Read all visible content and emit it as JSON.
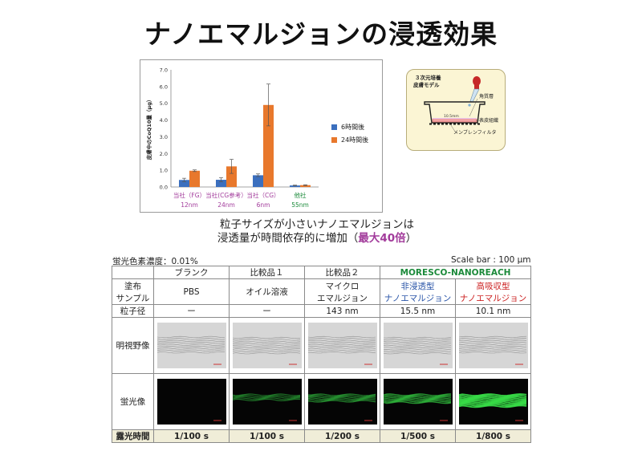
{
  "title": "ナノエマルジョンの浸透効果",
  "chart_data": {
    "type": "bar",
    "ylabel": "皮膚中のCoQ10量（μg）",
    "ylim": [
      0,
      7
    ],
    "yticks": [
      "0.0",
      "1.0",
      "2.0",
      "3.0",
      "4.0",
      "5.0",
      "6.0",
      "7.0"
    ],
    "categories": [
      {
        "line1": "当社（FG）",
        "line2": "12nm",
        "color": "#a23b9b"
      },
      {
        "line1": "当社(CG参考）",
        "line2": "24nm",
        "color": "#a23b9b"
      },
      {
        "line1": "当社（CG）",
        "line2": "6nm",
        "color": "#a23b9b"
      },
      {
        "line1": "他社",
        "line2": "55nm",
        "color": "#1b8a3a"
      }
    ],
    "series": [
      {
        "name": "6時間後",
        "color": "#3b6fbe",
        "values": [
          0.42,
          0.43,
          0.7,
          0.09
        ],
        "errors": [
          0.1,
          0.12,
          0.08,
          0.02
        ]
      },
      {
        "name": "24時間後",
        "color": "#e8782c",
        "values": [
          0.97,
          1.23,
          4.9,
          0.11
        ],
        "errors": [
          0.05,
          0.42,
          1.25,
          0.02
        ]
      }
    ],
    "legend": "right",
    "grid": false
  },
  "diagram": {
    "title_line1": "３次元培養",
    "title_line2": "皮膚モデル",
    "label_stratum": "角質層",
    "label_epidermis": "表皮組織",
    "label_size": "10.5mm",
    "label_membrane": "メンブレンフィルタ"
  },
  "caption": {
    "line1": "粒子サイズが小さいナノエマルジョンは",
    "line2_pre": "浸透量が時間依存的に増加（",
    "line2_hl": "最大40倍",
    "line2_post": "）"
  },
  "notes": {
    "concentration": "蛍光色素濃度：0.01%",
    "scale": "Scale bar : 100 μm"
  },
  "table": {
    "headers": [
      "ブランク",
      "比較品１",
      "比較品２"
    ],
    "brand": "MORESCO-NANOREACH",
    "row_coating": {
      "label_line1": "塗布",
      "label_line2": "サンプル",
      "cells": [
        {
          "line1": "PBS",
          "line2": ""
        },
        {
          "line1": "オイル溶液",
          "line2": ""
        },
        {
          "line1": "マイクロ",
          "line2": "エマルジョン"
        },
        {
          "line1": "非浸透型",
          "line2": "ナノエマルジョン"
        },
        {
          "line1": "高吸収型",
          "line2": "ナノエマルジョン"
        }
      ]
    },
    "row_size": {
      "label": "粒子径",
      "cells": [
        "ー",
        "ー",
        "143 nm",
        "15.5 nm",
        "10.1 nm"
      ]
    },
    "row_brightfield": {
      "label": "明視野像"
    },
    "row_fluorescence": {
      "label": "蛍光像",
      "intensity": [
        0.0,
        0.35,
        0.45,
        0.6,
        0.95
      ]
    },
    "row_exposure": {
      "label": "露光時間",
      "cells": [
        "1/100 s",
        "1/100 s",
        "1/200 s",
        "1/500 s",
        "1/800 s"
      ]
    }
  }
}
